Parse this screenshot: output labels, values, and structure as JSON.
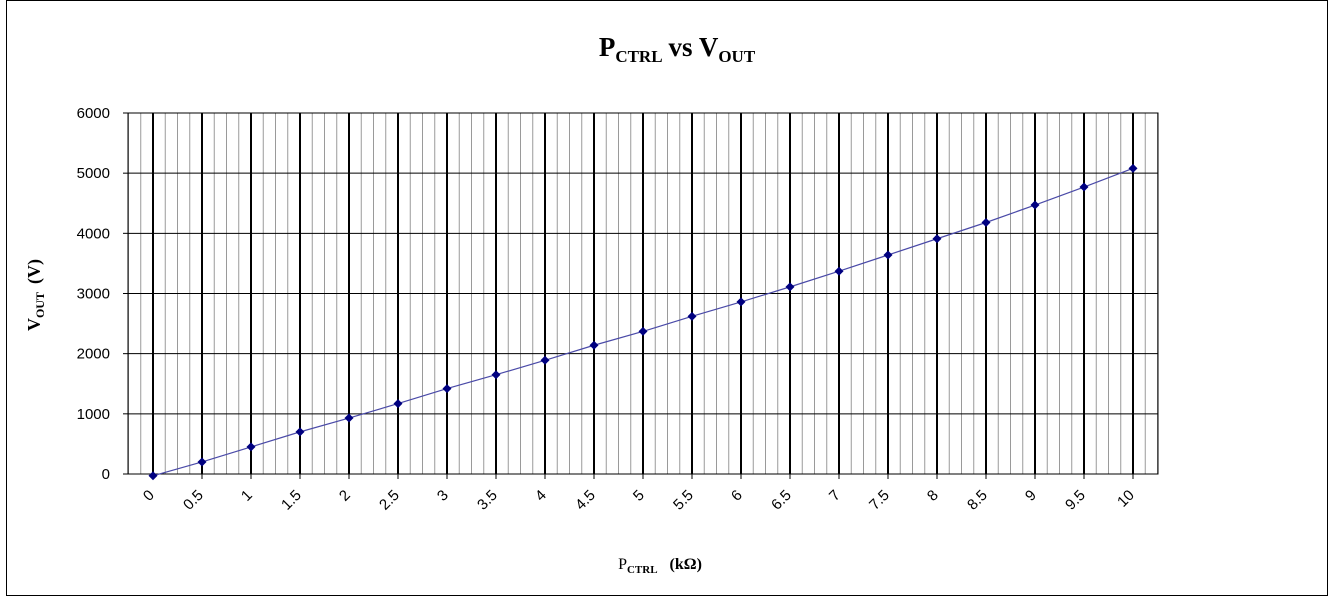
{
  "chart_data": {
    "type": "line",
    "title": {
      "main": "P",
      "main_sub": "CTRL",
      "connector": "vs V",
      "connector_sub": "OUT"
    },
    "xlabel": {
      "main": "P",
      "sub": "CTRL",
      "unit": "(kΩ)"
    },
    "ylabel": {
      "main": "V",
      "sub": "OUT",
      "unit": "(V)"
    },
    "ylim": [
      0,
      6000
    ],
    "yticks": [
      "0",
      "1000",
      "2000",
      "3000",
      "4000",
      "5000",
      "6000"
    ],
    "categories": [
      "0",
      "0.5",
      "1",
      "1.5",
      "2",
      "2.5",
      "3",
      "3.5",
      "4",
      "4.5",
      "5",
      "5.5",
      "6",
      "6.5",
      "7",
      "7.5",
      "8",
      "8.5",
      "9",
      "9.5",
      "10"
    ],
    "series": [
      {
        "values": [
          -30,
          200,
          450,
          700,
          930,
          1170,
          1420,
          1650,
          1890,
          2140,
          2370,
          2620,
          2860,
          3110,
          3370,
          3640,
          3910,
          4180,
          4470,
          4770,
          5080
        ],
        "color": "#000080",
        "line_color": "#4a4aa8"
      }
    ],
    "grid": true,
    "legend": "none"
  }
}
